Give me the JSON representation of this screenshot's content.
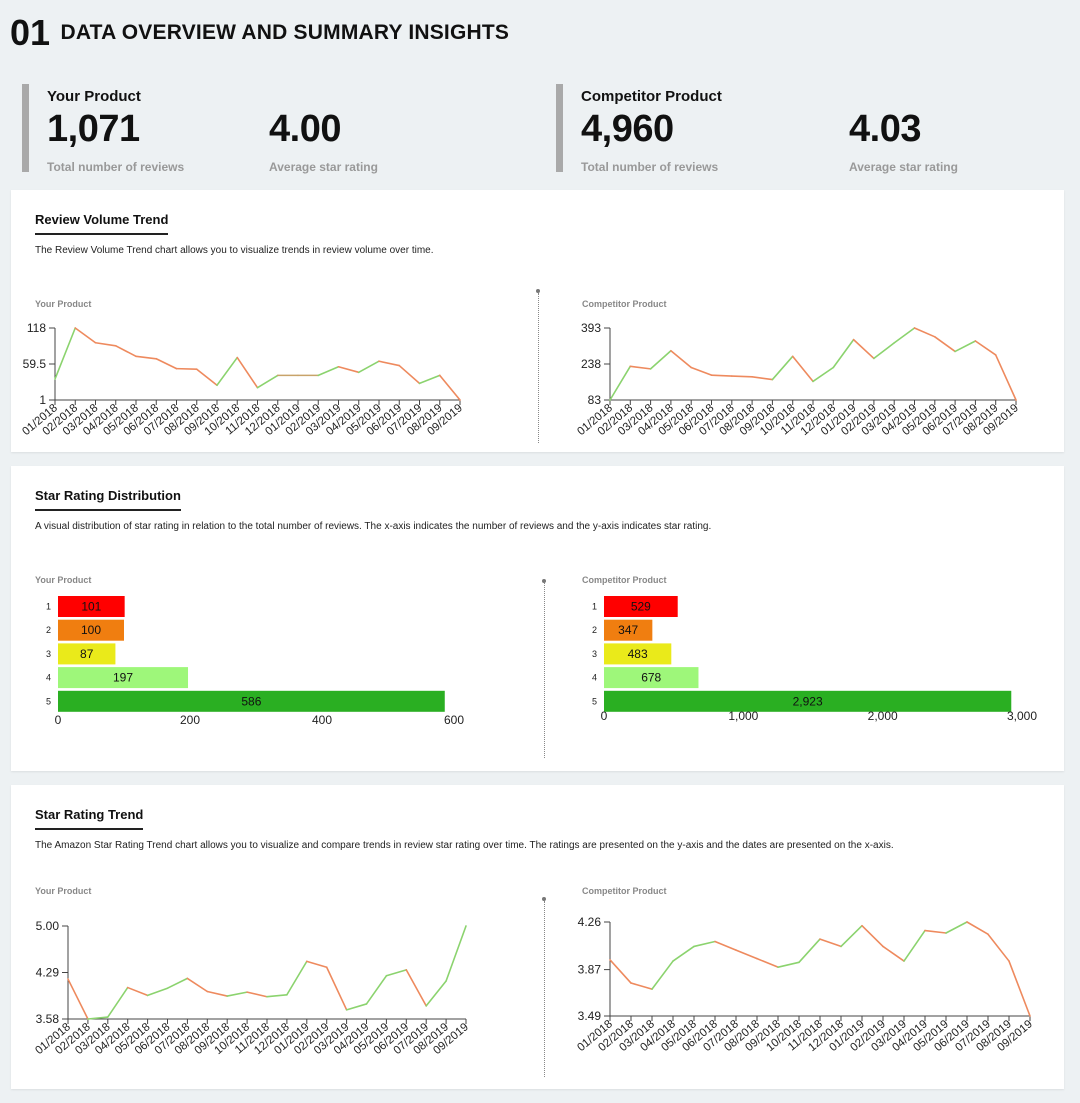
{
  "header": {
    "number": "01",
    "title": "DATA OVERVIEW AND SUMMARY INSIGHTS"
  },
  "kpis": {
    "your": {
      "label": "Your Product",
      "reviews": "1,071",
      "reviews_label": "Total number of reviews",
      "rating": "4.00",
      "rating_label": "Average star rating"
    },
    "competitor": {
      "label": "Competitor Product",
      "reviews": "4,960",
      "reviews_label": "Total number of reviews",
      "rating": "4.03",
      "rating_label": "Average star rating"
    }
  },
  "cards": {
    "volume": {
      "title": "Review Volume Trend",
      "desc": "The Review Volume Trend chart allows you to visualize trends in review volume over time.",
      "your_label": "Your Product",
      "comp_label": "Competitor Product"
    },
    "dist": {
      "title": "Star Rating Distribution",
      "desc": "A visual distribution of star rating in relation to the total number of reviews. The x-axis indicates the number of reviews and the y-axis indicates star rating.",
      "your_label": "Your Product",
      "comp_label": "Competitor Product"
    },
    "trend": {
      "title": "Star Rating Trend",
      "desc": "The Amazon Star Rating Trend chart allows you to visualize and compare trends in review star rating over time. The ratings are presented on the y-axis and the dates are presented on the x-axis.",
      "your_label": "Your Product",
      "comp_label": "Competitor Product"
    }
  },
  "colors": {
    "up": "#8bd36e",
    "down": "#ee8a5e",
    "mid": "#c8a36a",
    "star1": "#ff0000",
    "star2": "#f07e10",
    "star3": "#eaea1a",
    "star4": "#9ef77a",
    "star5": "#2aaf22"
  },
  "chart_data": [
    {
      "id": "volume-your",
      "type": "line",
      "title": "Your Product",
      "categories": [
        "01/2018",
        "02/2018",
        "03/2018",
        "04/2018",
        "05/2018",
        "06/2018",
        "07/2018",
        "08/2018",
        "09/2018",
        "10/2018",
        "11/2018",
        "12/2018",
        "01/2019",
        "02/2019",
        "03/2019",
        "04/2019",
        "05/2019",
        "06/2019",
        "07/2019",
        "08/2019",
        "09/2019"
      ],
      "values": [
        35,
        118,
        94,
        89,
        72,
        68,
        52,
        51,
        25,
        70,
        21,
        41,
        41,
        41,
        55,
        46,
        64,
        57,
        28,
        41,
        1
      ],
      "yticks": [
        "1",
        "59.5",
        "118"
      ],
      "ylim": [
        1,
        118
      ]
    },
    {
      "id": "volume-comp",
      "type": "line",
      "title": "Competitor Product",
      "categories": [
        "01/2018",
        "02/2018",
        "03/2018",
        "04/2018",
        "05/2018",
        "06/2018",
        "07/2018",
        "08/2018",
        "09/2018",
        "10/2018",
        "11/2018",
        "12/2018",
        "01/2019",
        "02/2019",
        "03/2019",
        "04/2019",
        "05/2019",
        "06/2019",
        "07/2019",
        "08/2019",
        "09/2019"
      ],
      "values": [
        83,
        228,
        217,
        295,
        223,
        190,
        186,
        183,
        171,
        271,
        163,
        223,
        343,
        262,
        329,
        393,
        355,
        292,
        337,
        277,
        83
      ],
      "yticks": [
        "83",
        "238",
        "393"
      ],
      "ylim": [
        83,
        393
      ]
    },
    {
      "id": "dist-your",
      "type": "bar",
      "orientation": "horizontal",
      "categories": [
        "1",
        "2",
        "3",
        "4",
        "5"
      ],
      "values": [
        101,
        100,
        87,
        197,
        586
      ],
      "labels": [
        "101",
        "100",
        "87",
        "197",
        "586"
      ],
      "xticks": [
        "0",
        "200",
        "400",
        "600"
      ],
      "xlim": [
        0,
        600
      ]
    },
    {
      "id": "dist-comp",
      "type": "bar",
      "orientation": "horizontal",
      "categories": [
        "1",
        "2",
        "3",
        "4",
        "5"
      ],
      "values": [
        529,
        347,
        483,
        678,
        2923
      ],
      "labels": [
        "529",
        "347",
        "483",
        "678",
        "2,923"
      ],
      "xticks": [
        "0",
        "1,000",
        "2,000",
        "3,000"
      ],
      "xlim": [
        0,
        3000
      ]
    },
    {
      "id": "trend-your",
      "type": "line",
      "title": "Your Product",
      "categories": [
        "01/2018",
        "02/2018",
        "03/2018",
        "04/2018",
        "05/2018",
        "06/2018",
        "07/2018",
        "08/2018",
        "09/2018",
        "10/2018",
        "11/2018",
        "12/2018",
        "01/2019",
        "02/2019",
        "03/2019",
        "04/2019",
        "05/2019",
        "06/2019",
        "07/2019",
        "08/2019",
        "09/2019"
      ],
      "values": [
        4.19,
        3.58,
        3.61,
        4.06,
        3.94,
        4.05,
        4.2,
        4.0,
        3.93,
        3.99,
        3.92,
        3.95,
        4.46,
        4.37,
        3.72,
        3.81,
        4.24,
        4.33,
        3.78,
        4.16,
        5.0
      ],
      "yticks": [
        "3.58",
        "4.29",
        "5.00"
      ],
      "ylim": [
        3.58,
        5.0
      ]
    },
    {
      "id": "trend-comp",
      "type": "line",
      "title": "Competitor Product",
      "categories": [
        "01/2018",
        "02/2018",
        "03/2018",
        "04/2018",
        "05/2018",
        "06/2018",
        "07/2018",
        "08/2018",
        "09/2018",
        "10/2018",
        "11/2018",
        "12/2018",
        "01/2019",
        "02/2019",
        "03/2019",
        "04/2019",
        "05/2019",
        "06/2019",
        "07/2019",
        "08/2019",
        "09/2019"
      ],
      "values": [
        3.95,
        3.76,
        3.71,
        3.94,
        4.06,
        4.1,
        4.03,
        3.96,
        3.89,
        3.93,
        4.12,
        4.06,
        4.23,
        4.06,
        3.94,
        4.19,
        4.17,
        4.26,
        4.16,
        3.94,
        3.49
      ],
      "yticks": [
        "3.49",
        "3.87",
        "4.26"
      ],
      "ylim": [
        3.49,
        4.26
      ]
    }
  ]
}
